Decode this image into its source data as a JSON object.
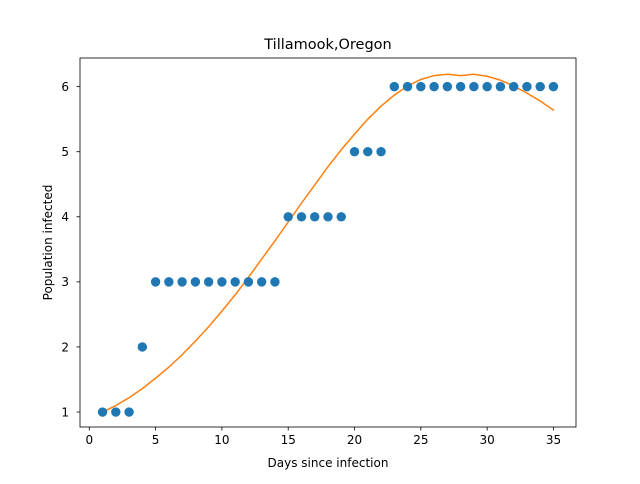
{
  "chart_data": {
    "type": "scatter",
    "title": "Tillamook,Oregon",
    "xlabel": "Days since infection",
    "ylabel": "Population infected",
    "xlim": [
      -0.7,
      36.7
    ],
    "ylim": [
      0.77,
      6.44
    ],
    "x_ticks": [
      0,
      5,
      10,
      15,
      20,
      25,
      30,
      35
    ],
    "y_ticks": [
      1,
      2,
      3,
      4,
      5,
      6
    ],
    "grid": false,
    "legend": "none",
    "series": [
      {
        "kind": "scatter",
        "color": "#1f77b4",
        "x": [
          1,
          2,
          3,
          4,
          5,
          6,
          7,
          8,
          9,
          10,
          11,
          12,
          13,
          14,
          15,
          16,
          17,
          18,
          19,
          20,
          21,
          22,
          23,
          24,
          25,
          26,
          27,
          28,
          29,
          30,
          31,
          32,
          33,
          34,
          35
        ],
        "y": [
          1,
          1,
          1,
          2,
          3,
          3,
          3,
          3,
          3,
          3,
          3,
          3,
          3,
          3,
          4,
          4,
          4,
          4,
          4,
          5,
          5,
          5,
          6,
          6,
          6,
          6,
          6,
          6,
          6,
          6,
          6,
          6,
          6,
          6,
          6
        ]
      },
      {
        "kind": "line",
        "color": "#ff7f0e",
        "x": [
          1,
          2,
          3,
          4,
          5,
          6,
          7,
          8,
          9,
          10,
          11,
          12,
          13,
          14,
          15,
          16,
          17,
          18,
          19,
          20,
          21,
          22,
          23,
          24,
          25,
          26,
          27,
          28,
          29,
          30,
          31,
          32,
          33,
          34,
          35
        ],
        "y": [
          1.0,
          1.1,
          1.22,
          1.36,
          1.52,
          1.69,
          1.88,
          2.09,
          2.31,
          2.55,
          2.8,
          3.07,
          3.35,
          3.63,
          3.92,
          4.21,
          4.49,
          4.77,
          5.03,
          5.27,
          5.5,
          5.7,
          5.87,
          6.01,
          6.11,
          6.17,
          6.19,
          6.17,
          6.19,
          6.16,
          6.1,
          6.01,
          5.9,
          5.78,
          5.64
        ]
      }
    ]
  }
}
